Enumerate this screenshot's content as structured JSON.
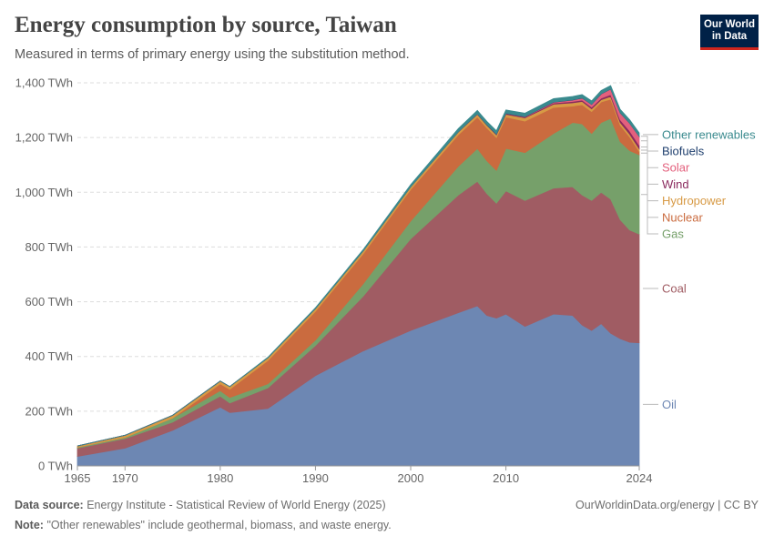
{
  "header": {
    "title": "Energy consumption by source, Taiwan",
    "subtitle": "Measured in terms of primary energy using the substitution method.",
    "logo_line1": "Our World",
    "logo_line2": "in Data"
  },
  "footer": {
    "source_label": "Data source:",
    "source_text": "Energy Institute - Statistical Review of World Energy (2025)",
    "credit": "OurWorldinData.org/energy | CC BY",
    "note_label": "Note:",
    "note_text": "\"Other renewables\" include geothermal, biomass, and waste energy."
  },
  "chart_data": {
    "type": "area",
    "stacked": true,
    "unit": "TWh",
    "xlim": [
      1965,
      2024
    ],
    "ylim": [
      0,
      1400
    ],
    "grid": true,
    "x_ticks": [
      "1965",
      "1970",
      "1980",
      "1990",
      "2000",
      "2010",
      "2024"
    ],
    "y_ticks": [
      "0 TWh",
      "200 TWh",
      "400 TWh",
      "600 TWh",
      "800 TWh",
      "1,000 TWh",
      "1,200 TWh",
      "1,400 TWh"
    ],
    "x": [
      1965,
      1970,
      1975,
      1980,
      1981,
      1985,
      1990,
      1995,
      2000,
      2005,
      2007,
      2008,
      2009,
      2010,
      2012,
      2015,
      2017,
      2018,
      2019,
      2020,
      2021,
      2022,
      2023,
      2024
    ],
    "series": [
      {
        "name": "Oil",
        "color": "#6d87b3",
        "values": [
          35,
          65,
          130,
          215,
          195,
          210,
          330,
          420,
          495,
          560,
          585,
          550,
          540,
          555,
          510,
          555,
          550,
          515,
          495,
          520,
          485,
          465,
          452,
          450
        ]
      },
      {
        "name": "Coal",
        "color": "#a05c63",
        "values": [
          30,
          35,
          30,
          40,
          35,
          75,
          110,
          200,
          335,
          430,
          455,
          445,
          420,
          450,
          460,
          460,
          470,
          475,
          475,
          480,
          490,
          435,
          410,
          397
        ]
      },
      {
        "name": "Gas",
        "color": "#76a06a",
        "values": [
          3,
          4,
          15,
          20,
          20,
          15,
          20,
          45,
          65,
          105,
          120,
          120,
          120,
          155,
          175,
          200,
          235,
          260,
          245,
          255,
          295,
          285,
          290,
          290
        ]
      },
      {
        "name": "Nuclear",
        "color": "#ca6b3f",
        "values": [
          0,
          0,
          0,
          25,
          30,
          85,
          105,
          110,
          115,
          115,
          115,
          120,
          120,
          115,
          115,
          95,
          60,
          70,
          80,
          75,
          70,
          60,
          50,
          12
        ]
      },
      {
        "name": "Hydropower",
        "color": "#d79a45",
        "values": [
          5,
          8,
          10,
          10,
          10,
          10,
          10,
          10,
          10,
          10,
          10,
          10,
          10,
          10,
          12,
          12,
          12,
          12,
          10,
          8,
          10,
          10,
          10,
          10
        ]
      },
      {
        "name": "Wind",
        "color": "#8a2a5e",
        "values": [
          0,
          0,
          0,
          0,
          0,
          0,
          0,
          0,
          0,
          1,
          1,
          1,
          2,
          3,
          3,
          4,
          5,
          5,
          6,
          6,
          7,
          10,
          12,
          13
        ]
      },
      {
        "name": "Solar",
        "color": "#e3607d",
        "values": [
          0,
          0,
          0,
          0,
          0,
          0,
          0,
          0,
          0,
          0,
          0,
          0,
          0,
          0,
          1,
          3,
          5,
          7,
          10,
          15,
          20,
          25,
          28,
          32
        ]
      },
      {
        "name": "Biofuels",
        "color": "#1f3f6e",
        "values": [
          0,
          0,
          0,
          0,
          0,
          0,
          0,
          0,
          0,
          0,
          1,
          1,
          1,
          1,
          1,
          1,
          1,
          1,
          1,
          1,
          1,
          1,
          1,
          1
        ]
      },
      {
        "name": "Other renewables",
        "color": "#3a8a8e",
        "values": [
          0,
          0,
          0,
          0,
          0,
          2,
          3,
          5,
          8,
          12,
          12,
          12,
          12,
          12,
          12,
          12,
          12,
          12,
          12,
          12,
          12,
          12,
          12,
          12
        ]
      }
    ]
  }
}
